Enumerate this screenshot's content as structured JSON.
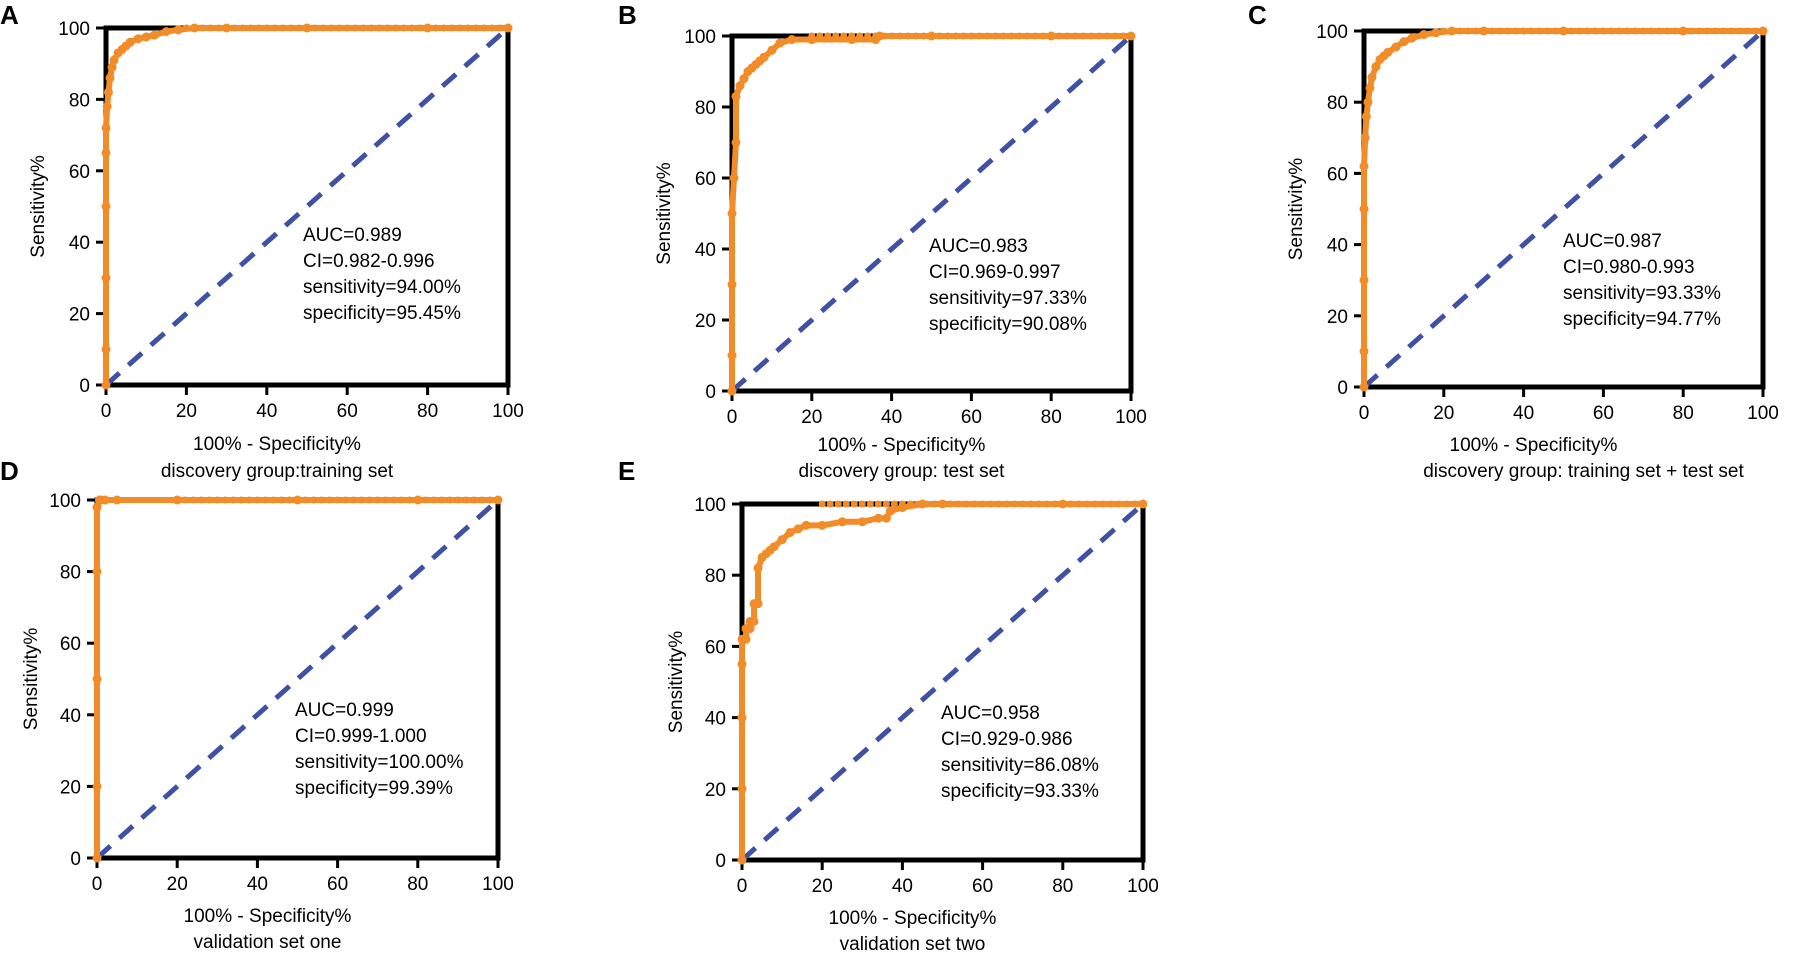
{
  "figure": {
    "line_color_roc": "#F28C28",
    "line_color_reference": "#3F51A5",
    "axis_color": "#000000"
  },
  "chart_data": [
    {
      "panel": "A",
      "type": "line",
      "title": "discovery group:training set",
      "xlabel": "100% - Specificity%",
      "ylabel": "Sensitivity%",
      "xlim": [
        0,
        100
      ],
      "ylim": [
        0,
        100
      ],
      "xticks": [
        0,
        20,
        40,
        60,
        80,
        100
      ],
      "yticks": [
        0,
        20,
        40,
        60,
        80,
        100
      ],
      "annotations": [
        "AUC=0.989",
        "CI=0.982-0.996",
        "sensitivity=94.00%",
        "specificity=95.45%"
      ],
      "series": [
        {
          "name": "ROC",
          "x": [
            0,
            0,
            0,
            0,
            0,
            0,
            0.3,
            0.6,
            1,
            1.5,
            2,
            3,
            4,
            5,
            6,
            8,
            10,
            12,
            15,
            18,
            22,
            30,
            50,
            80,
            100
          ],
          "y": [
            0,
            10,
            30,
            50,
            65,
            72,
            78,
            82,
            86,
            89,
            91,
            93,
            94,
            95,
            96,
            97,
            97.5,
            98,
            99,
            99.5,
            100,
            100,
            100,
            100,
            100
          ]
        },
        {
          "name": "Reference",
          "x": [
            0,
            100
          ],
          "y": [
            0,
            100
          ]
        }
      ]
    },
    {
      "panel": "B",
      "type": "line",
      "title": "discovery group: test set",
      "xlabel": "100% - Specificity%",
      "ylabel": "Sensitivity%",
      "xlim": [
        0,
        100
      ],
      "ylim": [
        0,
        100
      ],
      "xticks": [
        0,
        20,
        40,
        60,
        80,
        100
      ],
      "yticks": [
        0,
        20,
        40,
        60,
        80,
        100
      ],
      "annotations": [
        "AUC=0.983",
        "CI=0.969-0.997",
        "sensitivity=97.33%",
        "specificity=90.08%"
      ],
      "series": [
        {
          "name": "ROC",
          "x": [
            0,
            0,
            0,
            0,
            0.5,
            1,
            1,
            2,
            3,
            4,
            5,
            6,
            7,
            8,
            10,
            12,
            15,
            20,
            30,
            36,
            37,
            50,
            80,
            100
          ],
          "y": [
            0,
            10,
            30,
            50,
            60,
            70,
            83,
            86,
            88,
            90,
            91,
            92,
            93,
            94,
            96,
            98,
            99,
            99,
            99,
            99,
            100,
            100,
            100,
            100
          ]
        },
        {
          "name": "Reference",
          "x": [
            0,
            100
          ],
          "y": [
            0,
            100
          ]
        }
      ]
    },
    {
      "panel": "C",
      "type": "line",
      "title": "discovery group: training set + test set",
      "xlabel": "100% - Specificity%",
      "ylabel": "Sensitivity%",
      "xlim": [
        0,
        100
      ],
      "ylim": [
        0,
        100
      ],
      "xticks": [
        0,
        20,
        40,
        60,
        80,
        100
      ],
      "yticks": [
        0,
        20,
        40,
        60,
        80,
        100
      ],
      "annotations": [
        "AUC=0.987",
        "CI=0.980-0.993",
        "sensitivity=93.33%",
        "specificity=94.77%"
      ],
      "series": [
        {
          "name": "ROC",
          "x": [
            0,
            0,
            0,
            0,
            0,
            0.3,
            0.6,
            1,
            1.5,
            2,
            3,
            4,
            5,
            6,
            8,
            10,
            12,
            15,
            18,
            22,
            30,
            50,
            80,
            100
          ],
          "y": [
            0,
            10,
            30,
            50,
            62,
            70,
            76,
            80,
            84,
            87,
            90,
            92,
            93,
            94,
            95.5,
            97,
            98,
            99,
            99.5,
            100,
            100,
            100,
            100,
            100
          ]
        },
        {
          "name": "Reference",
          "x": [
            0,
            100
          ],
          "y": [
            0,
            100
          ]
        }
      ]
    },
    {
      "panel": "D",
      "type": "line",
      "title": "validation set one",
      "xlabel": "100% - Specificity%",
      "ylabel": "Sensitivity%",
      "xlim": [
        0,
        100
      ],
      "ylim": [
        0,
        100
      ],
      "xticks": [
        0,
        20,
        40,
        60,
        80,
        100
      ],
      "yticks": [
        0,
        20,
        40,
        60,
        80,
        100
      ],
      "annotations": [
        "AUC=0.999",
        "CI=0.999-1.000",
        "sensitivity=100.00%",
        "specificity=99.39%"
      ],
      "series": [
        {
          "name": "ROC",
          "x": [
            0,
            0,
            0,
            0,
            0,
            0.6,
            1,
            2,
            5,
            20,
            50,
            80,
            100
          ],
          "y": [
            0,
            20,
            50,
            80,
            98,
            100,
            100,
            100,
            100,
            100,
            100,
            100,
            100
          ]
        },
        {
          "name": "Reference",
          "x": [
            0,
            100
          ],
          "y": [
            0,
            100
          ]
        }
      ]
    },
    {
      "panel": "E",
      "type": "line",
      "title": "validation set two",
      "xlabel": "100% - Specificity%",
      "ylabel": "Sensitivity%",
      "xlim": [
        0,
        100
      ],
      "ylim": [
        0,
        100
      ],
      "xticks": [
        0,
        20,
        40,
        60,
        80,
        100
      ],
      "yticks": [
        0,
        20,
        40,
        60,
        80,
        100
      ],
      "annotations": [
        "AUC=0.958",
        "CI=0.929-0.986",
        "sensitivity=86.08%",
        "specificity=93.33%"
      ],
      "series": [
        {
          "name": "ROC",
          "x": [
            0,
            0,
            0,
            0,
            0,
            1,
            1,
            2,
            2,
            3,
            3,
            4,
            4,
            5,
            6,
            7,
            8,
            10,
            12,
            14,
            16,
            20,
            25,
            30,
            34,
            36,
            37,
            40,
            45,
            50,
            80,
            100
          ],
          "y": [
            0,
            20,
            40,
            55,
            62,
            62,
            65,
            65,
            67,
            67,
            72,
            72,
            82,
            85,
            86,
            87,
            88,
            90,
            92,
            93,
            94,
            94,
            95,
            95,
            96,
            96,
            98,
            99,
            100,
            100,
            100,
            100
          ]
        },
        {
          "name": "Reference",
          "x": [
            0,
            100
          ],
          "y": [
            0,
            100
          ]
        }
      ]
    }
  ]
}
